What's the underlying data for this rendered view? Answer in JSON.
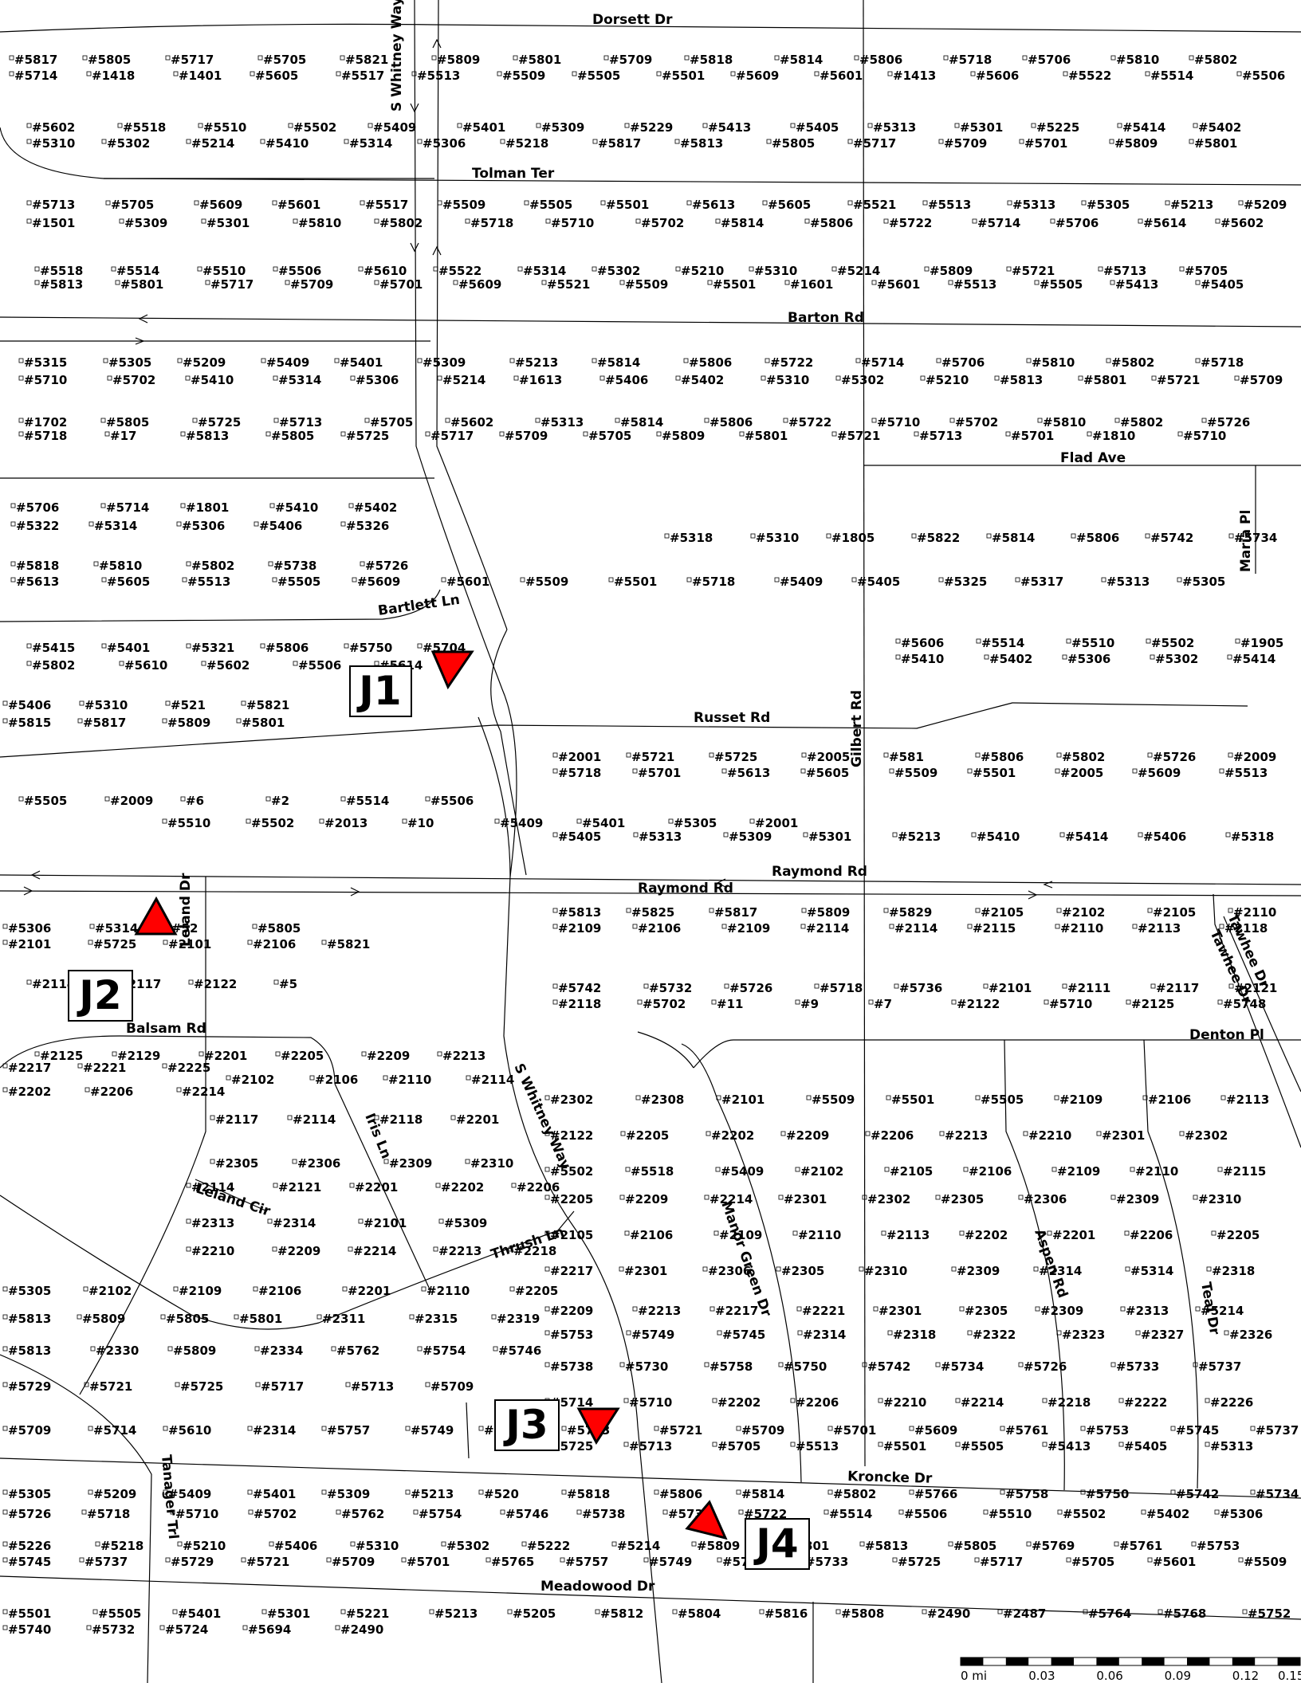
{
  "streets": {
    "dorsett": "Dorsett Dr",
    "tolman": "Tolman Ter",
    "barton": "Barton Rd",
    "flad": "Flad Ave",
    "maria": "Maria Pl",
    "bartlett": "Bartlett Ln",
    "russet": "Russet Rd",
    "gilbert": "Gilbert Rd",
    "raymond_top": "Raymond Rd",
    "raymond_bottom": "Raymond Rd",
    "leland": "Leland Dr",
    "balsam": "Balsam Rd",
    "denton": "Denton Pl",
    "tawhee1": "Tawhee Dr",
    "tawhee2": "Tawhee Dr",
    "iris": "Iris Ln",
    "leland_cir": "Leland Cir",
    "thrush": "Thrush Ln",
    "swhitney_n": "S Whitney Way",
    "swhitney_s": "S Whitney Way",
    "manor": "Manor Green Dr",
    "aspen": "Aspen Rd",
    "teal": "Teal Dr",
    "kroncke": "Kroncke Dr",
    "tanager": "Tanager Trl",
    "meadowood": "Meadowood Dr"
  },
  "junctions": {
    "j1": "J1",
    "j2": "J2",
    "j3": "J3",
    "j4": "J4",
    "marker_color": "#ff0000"
  },
  "scale_bar": {
    "ticks": [
      "0 mi",
      "0.03",
      "0.06",
      "0.09",
      "0.12",
      "0.15"
    ]
  },
  "addresses": [
    "#5817",
    "#5805",
    "#5717",
    "#5705",
    "#5821",
    "#5809",
    "#5801",
    "#5709",
    "#5818",
    "#5814",
    "#5806",
    "#5718",
    "#5706",
    "#5810",
    "#5802",
    "#5714",
    "#1418",
    "#1401",
    "#5605",
    "#5517",
    "#5513",
    "#5509",
    "#5505",
    "#5501",
    "#5609",
    "#5601",
    "#1413",
    "#5606",
    "#5522",
    "#5514",
    "#5506",
    "#5602",
    "#5518",
    "#5510",
    "#5502",
    "#5409",
    "#5401",
    "#5309",
    "#5229",
    "#5413",
    "#5405",
    "#5313",
    "#5301",
    "#5225",
    "#5414",
    "#5402",
    "#5310",
    "#5302",
    "#5214",
    "#5410",
    "#5314",
    "#5306",
    "#5218",
    "#5817",
    "#5813",
    "#5805",
    "#5717",
    "#5709",
    "#5701",
    "#5809",
    "#5801",
    "#5713",
    "#5705",
    "#5609",
    "#5601",
    "#5517",
    "#5509",
    "#5505",
    "#5501",
    "#5613",
    "#5605",
    "#5521",
    "#5513",
    "#5313",
    "#5305",
    "#5213",
    "#5209",
    "#1501",
    "#5309",
    "#5301",
    "#5810",
    "#5802",
    "#5718",
    "#5710",
    "#5702",
    "#5814",
    "#5806",
    "#5722",
    "#5714",
    "#5706",
    "#5614",
    "#5602",
    "#5518",
    "#5514",
    "#5510",
    "#5506",
    "#5610",
    "#5522",
    "#5314",
    "#5302",
    "#5210",
    "#5310",
    "#5214",
    "#5809",
    "#5721",
    "#5713",
    "#5705",
    "#5813",
    "#5801",
    "#5717",
    "#5709",
    "#5701",
    "#5609",
    "#5521",
    "#5509",
    "#5501",
    "#1601",
    "#5601",
    "#5513",
    "#5505",
    "#5413",
    "#5405",
    "#5315",
    "#5305",
    "#5209",
    "#5409",
    "#5401",
    "#5309",
    "#5213",
    "#5814",
    "#5806",
    "#5722",
    "#5714",
    "#5706",
    "#5810",
    "#5802",
    "#5718",
    "#5710",
    "#5702",
    "#5410",
    "#5314",
    "#5306",
    "#5214",
    "#1613",
    "#5406",
    "#5402",
    "#5310",
    "#5302",
    "#5210",
    "#5813",
    "#5801",
    "#5721",
    "#5709",
    "#1702",
    "#5805",
    "#5725",
    "#5713",
    "#5705",
    "#5602",
    "#5313",
    "#5814",
    "#5806",
    "#5722",
    "#5710",
    "#5702",
    "#5810",
    "#5802",
    "#5726",
    "#5718",
    "#17",
    "#5813",
    "#5805",
    "#5725",
    "#5717",
    "#5709",
    "#5705",
    "#5809",
    "#5801",
    "#5721",
    "#5713",
    "#5701",
    "#1810",
    "#5710",
    "#5706",
    "#5714",
    "#1801",
    "#5410",
    "#5402",
    "#5322",
    "#5314",
    "#5306",
    "#5406",
    "#5326",
    "#5318",
    "#5310",
    "#1805",
    "#5822",
    "#5814",
    "#5806",
    "#5742",
    "#5734",
    "#5818",
    "#5810",
    "#5802",
    "#5738",
    "#5726",
    "#5613",
    "#5605",
    "#5513",
    "#5505",
    "#5609",
    "#5601",
    "#5509",
    "#5501",
    "#5718",
    "#5409",
    "#5405",
    "#5325",
    "#5317",
    "#5313",
    "#5305",
    "#5415",
    "#5401",
    "#5321",
    "#5806",
    "#5750",
    "#5704",
    "#5802",
    "#5610",
    "#5602",
    "#5506",
    "#5614",
    "#5606",
    "#5514",
    "#5510",
    "#5502",
    "#1905",
    "#5410",
    "#5402",
    "#5306",
    "#5302",
    "#5414",
    "#5406",
    "#5310",
    "#521",
    "#5821",
    "#5815",
    "#5817",
    "#5809",
    "#5801",
    "#2001",
    "#5721",
    "#5725",
    "#2005",
    "#581",
    "#5806",
    "#5802",
    "#5726",
    "#2009",
    "#5718",
    "#5701",
    "#5613",
    "#5605",
    "#5509",
    "#5501",
    "#2005",
    "#5609",
    "#5513",
    "#5505",
    "#2009",
    "#6",
    "#2",
    "#5514",
    "#5506",
    "#5510",
    "#5502",
    "#2013",
    "#10",
    "#5409",
    "#5401",
    "#5305",
    "#2001",
    "#5405",
    "#5313",
    "#5309",
    "#5301",
    "#5213",
    "#5410",
    "#5414",
    "#5406",
    "#5318",
    "#5306",
    "#5314",
    "#52",
    "#5805",
    "#2101",
    "#5725",
    "#2101",
    "#2106",
    "#5821",
    "#5813",
    "#5825",
    "#5817",
    "#5809",
    "#5829",
    "#2105",
    "#2102",
    "#2105",
    "#2110",
    "#2109",
    "#2106",
    "#2109",
    "#2114",
    "#2114",
    "#2115",
    "#2110",
    "#2113",
    "#2118",
    "#2114",
    "#2117",
    "#2122",
    "#5",
    "#2118",
    "#5702",
    "#11",
    "#9",
    "#7",
    "#2122",
    "#5710",
    "#2125",
    "#5748",
    "#5742",
    "#5732",
    "#5726",
    "#5718",
    "#5736",
    "#2101",
    "#2111",
    "#2117",
    "#2121",
    "#2125",
    "#2129",
    "#2201",
    "#2205",
    "#2209",
    "#2213",
    "#2217",
    "#2221",
    "#2225",
    "#2102",
    "#2106",
    "#2110",
    "#2114",
    "#2202",
    "#2206",
    "#2214",
    "#2302",
    "#2308",
    "#2101",
    "#5509",
    "#5501",
    "#5505",
    "#2109",
    "#2106",
    "#2113",
    "#2117",
    "#2114",
    "#2118",
    "#2201",
    "#2122",
    "#2205",
    "#2202",
    "#2209",
    "#2206",
    "#2213",
    "#2210",
    "#2301",
    "#2302",
    "#2305",
    "#2306",
    "#2309",
    "#2310",
    "#5502",
    "#5518",
    "#5409",
    "#2102",
    "#2105",
    "#2106",
    "#2109",
    "#2110",
    "#2115",
    "#2114",
    "#2121",
    "#2201",
    "#2202",
    "#2206",
    "#2205",
    "#2209",
    "#2214",
    "#2301",
    "#2302",
    "#2305",
    "#2306",
    "#2309",
    "#2310",
    "#2313",
    "#2314",
    "#2101",
    "#5309",
    "#2105",
    "#2106",
    "#2109",
    "#2110",
    "#2113",
    "#2202",
    "#2201",
    "#2206",
    "#2205",
    "#2210",
    "#2209",
    "#2214",
    "#2213",
    "#2218",
    "#2217",
    "#2301",
    "#2306",
    "#2305",
    "#2310",
    "#2309",
    "#2314",
    "#5314",
    "#2318",
    "#5305",
    "#2102",
    "#2109",
    "#2106",
    "#2201",
    "#2110",
    "#2205",
    "#2209",
    "#2213",
    "#2217",
    "#2221",
    "#2301",
    "#2305",
    "#2309",
    "#2313",
    "#5214",
    "#5813",
    "#5809",
    "#5805",
    "#5801",
    "#2311",
    "#2315",
    "#2319",
    "#5753",
    "#5749",
    "#5745",
    "#2314",
    "#2318",
    "#2322",
    "#2323",
    "#2327",
    "#2326",
    "#5813",
    "#2330",
    "#5809",
    "#2334",
    "#5762",
    "#5754",
    "#5746",
    "#5738",
    "#5730",
    "#5758",
    "#5750",
    "#5742",
    "#5734",
    "#5726",
    "#5733",
    "#5737",
    "#5729",
    "#5721",
    "#5725",
    "#5717",
    "#5713",
    "#5709",
    "#5714",
    "#5710",
    "#2202",
    "#2206",
    "#2210",
    "#2214",
    "#2218",
    "#2222",
    "#2226",
    "#5709",
    "#5714",
    "#5610",
    "#2314",
    "#5757",
    "#5749",
    "#5741",
    "#5733",
    "#5721",
    "#5709",
    "#5701",
    "#5609",
    "#5761",
    "#5753",
    "#5745",
    "#5737",
    "#5725",
    "#5713",
    "#5705",
    "#5513",
    "#5501",
    "#5505",
    "#5413",
    "#5405",
    "#5313",
    "#5305",
    "#5209",
    "#5409",
    "#5401",
    "#5309",
    "#5213",
    "#520",
    "#5818",
    "#5806",
    "#5814",
    "#5802",
    "#5766",
    "#5758",
    "#5750",
    "#5742",
    "#5734",
    "#5726",
    "#5718",
    "#5710",
    "#5702",
    "#5762",
    "#5754",
    "#5746",
    "#5738",
    "#5730",
    "#5722",
    "#5514",
    "#5506",
    "#5510",
    "#5502",
    "#5402",
    "#5306",
    "#5226",
    "#5218",
    "#5210",
    "#5406",
    "#5310",
    "#5302",
    "#5222",
    "#5214",
    "#5809",
    "#5801",
    "#5813",
    "#5805",
    "#5769",
    "#5761",
    "#5753",
    "#5745",
    "#5737",
    "#5729",
    "#5721",
    "#5709",
    "#5701",
    "#5765",
    "#5757",
    "#5749",
    "#5741",
    "#5733",
    "#5725",
    "#5717",
    "#5705",
    "#5601",
    "#5509",
    "#5501",
    "#5505",
    "#5401",
    "#5301",
    "#5221",
    "#5213",
    "#5205",
    "#5812",
    "#5804",
    "#5816",
    "#5808",
    "#2490",
    "#2487",
    "#5764",
    "#5768",
    "#5752",
    "#5740",
    "#5732",
    "#5724",
    "#5694",
    "#2490"
  ]
}
